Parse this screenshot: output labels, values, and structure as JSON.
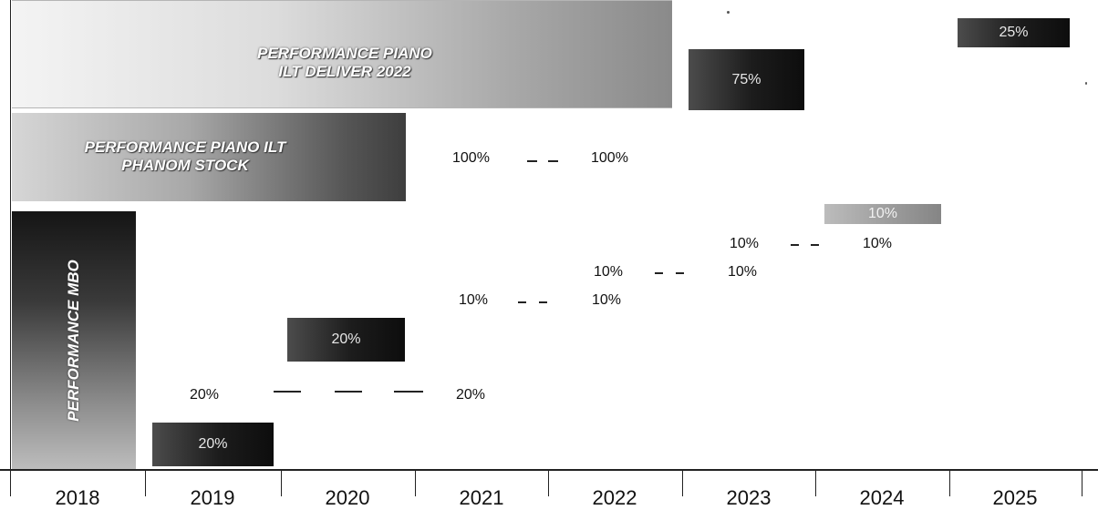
{
  "bars": {
    "deliver": {
      "line1": "PERFORMANCE PIANO",
      "line2": "ILT DELIVER 2022"
    },
    "phantom": {
      "line1": "PERFORMANCE PIANO ILT",
      "line2": "PHANOM STOCK"
    },
    "mbo": {
      "label": "PERFORMANCE MBO"
    }
  },
  "boxes": {
    "deliver_2023": "75%",
    "deliver_2025": "25%",
    "phantom_2024": "10%",
    "mbo_2020": "20%",
    "mbo_2019": "20%"
  },
  "rows": {
    "phantom_2021": "100%",
    "phantom_2022": "100%",
    "r1_2023": "10%",
    "r1_2024": "10%",
    "r2_2022": "10%",
    "r2_2023": "10%",
    "r3_2021": "10%",
    "r3_2022": "10%",
    "r4_2019": "20%",
    "r4_2021": "20%"
  },
  "axis": {
    "years": [
      "2018",
      "2019",
      "2020",
      "2021",
      "2022",
      "2023",
      "2024",
      "2025"
    ]
  }
}
